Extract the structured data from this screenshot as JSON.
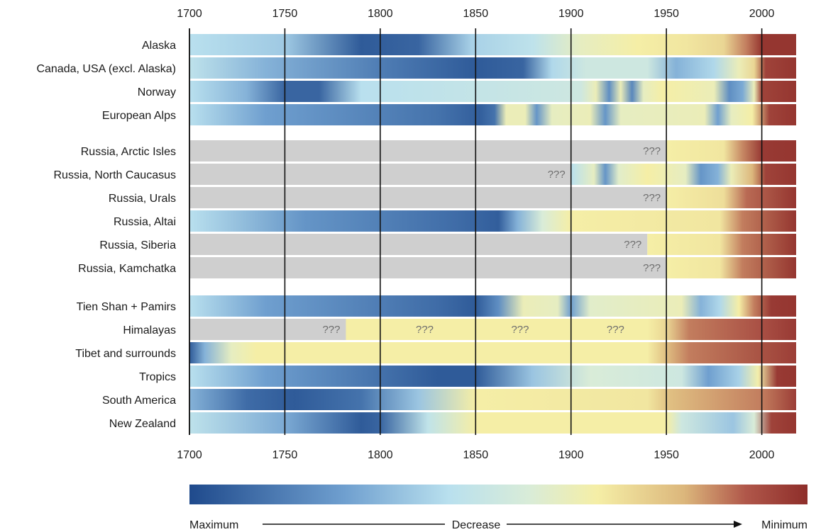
{
  "chart_data": {
    "type": "heatmap",
    "x_range": [
      1700,
      2018
    ],
    "x_ticks": [
      "1700",
      "1750",
      "1800",
      "1850",
      "1900",
      "1950",
      "2000"
    ],
    "value_scale": "0 = maximum glacier extent, 1 = minimum glacier extent",
    "no_data_color": "#cfcfcf",
    "colormap": [
      {
        "v": 0.0,
        "color": "#1f4a8c"
      },
      {
        "v": 0.25,
        "color": "#6f9fcf"
      },
      {
        "v": 0.42,
        "color": "#b9e0ee"
      },
      {
        "v": 0.55,
        "color": "#d9ecd8"
      },
      {
        "v": 0.66,
        "color": "#f5eea6"
      },
      {
        "v": 0.8,
        "color": "#dcb77c"
      },
      {
        "v": 0.9,
        "color": "#b0574a"
      },
      {
        "v": 1.0,
        "color": "#8e2e2a"
      }
    ],
    "groups": [
      {
        "rows": [
          {
            "name": "Alaska",
            "stops": [
              [
                1700,
                0.42
              ],
              [
                1750,
                0.36
              ],
              [
                1790,
                0.05
              ],
              [
                1820,
                0.08
              ],
              [
                1848,
                0.38
              ],
              [
                1880,
                0.44
              ],
              [
                1905,
                0.6
              ],
              [
                1935,
                0.66
              ],
              [
                1960,
                0.68
              ],
              [
                1980,
                0.72
              ],
              [
                1992,
                0.86
              ],
              [
                2000,
                0.98
              ],
              [
                2018,
                0.98
              ]
            ],
            "unknown": []
          },
          {
            "name": "Canada, USA (excl. Alaska)",
            "stops": [
              [
                1700,
                0.44
              ],
              [
                1740,
                0.3
              ],
              [
                1800,
                0.15
              ],
              [
                1850,
                0.05
              ],
              [
                1875,
                0.08
              ],
              [
                1890,
                0.4
              ],
              [
                1908,
                0.5
              ],
              [
                1940,
                0.5
              ],
              [
                1955,
                0.3
              ],
              [
                1975,
                0.4
              ],
              [
                1988,
                0.62
              ],
              [
                1996,
                0.72
              ],
              [
                2002,
                0.95
              ],
              [
                2018,
                0.98
              ]
            ],
            "unknown": []
          },
          {
            "name": "Norway",
            "stops": [
              [
                1700,
                0.42
              ],
              [
                1730,
                0.3
              ],
              [
                1750,
                0.08
              ],
              [
                1768,
                0.08
              ],
              [
                1790,
                0.42
              ],
              [
                1905,
                0.5
              ],
              [
                1913,
                0.62
              ],
              [
                1920,
                0.2
              ],
              [
                1926,
                0.62
              ],
              [
                1932,
                0.18
              ],
              [
                1938,
                0.6
              ],
              [
                1948,
                0.66
              ],
              [
                1975,
                0.62
              ],
              [
                1983,
                0.2
              ],
              [
                1990,
                0.28
              ],
              [
                1996,
                0.62
              ],
              [
                2000,
                0.95
              ],
              [
                2018,
                0.98
              ]
            ],
            "unknown": []
          },
          {
            "name": "European Alps",
            "stops": [
              [
                1700,
                0.42
              ],
              [
                1740,
                0.25
              ],
              [
                1830,
                0.12
              ],
              [
                1852,
                0.06
              ],
              [
                1860,
                0.12
              ],
              [
                1866,
                0.62
              ],
              [
                1876,
                0.62
              ],
              [
                1882,
                0.22
              ],
              [
                1890,
                0.6
              ],
              [
                1910,
                0.62
              ],
              [
                1918,
                0.22
              ],
              [
                1926,
                0.6
              ],
              [
                1970,
                0.62
              ],
              [
                1977,
                0.25
              ],
              [
                1984,
                0.6
              ],
              [
                1995,
                0.66
              ],
              [
                2004,
                0.95
              ],
              [
                2018,
                0.98
              ]
            ],
            "unknown": []
          }
        ]
      },
      {
        "rows": [
          {
            "name": "Russia, Arctic Isles",
            "stops": [
              [
                1950,
                0.66
              ],
              [
                1980,
                0.68
              ],
              [
                1990,
                0.85
              ],
              [
                2000,
                0.97
              ],
              [
                2018,
                0.98
              ]
            ],
            "unknown": [
              {
                "from": 1700,
                "to": 1950,
                "label": "???"
              }
            ]
          },
          {
            "name": "Russia, North Caucasus",
            "stops": [
              [
                1900,
                0.42
              ],
              [
                1912,
                0.6
              ],
              [
                1918,
                0.22
              ],
              [
                1925,
                0.58
              ],
              [
                1940,
                0.66
              ],
              [
                1960,
                0.6
              ],
              [
                1968,
                0.22
              ],
              [
                1977,
                0.3
              ],
              [
                1984,
                0.62
              ],
              [
                1995,
                0.8
              ],
              [
                2002,
                0.95
              ],
              [
                2018,
                0.98
              ]
            ],
            "unknown": [
              {
                "from": 1700,
                "to": 1900,
                "label": "???"
              }
            ]
          },
          {
            "name": "Russia, Urals",
            "stops": [
              [
                1950,
                0.66
              ],
              [
                1980,
                0.7
              ],
              [
                1992,
                0.88
              ],
              [
                2018,
                0.98
              ]
            ],
            "unknown": [
              {
                "from": 1700,
                "to": 1950,
                "label": "???"
              }
            ]
          },
          {
            "name": "Russia, Altai",
            "stops": [
              [
                1700,
                0.42
              ],
              [
                1760,
                0.22
              ],
              [
                1840,
                0.1
              ],
              [
                1862,
                0.06
              ],
              [
                1872,
                0.3
              ],
              [
                1885,
                0.55
              ],
              [
                1900,
                0.66
              ],
              [
                1978,
                0.68
              ],
              [
                1990,
                0.86
              ],
              [
                2018,
                0.98
              ]
            ],
            "unknown": []
          },
          {
            "name": "Russia, Siberia",
            "stops": [
              [
                1940,
                0.66
              ],
              [
                1978,
                0.68
              ],
              [
                1990,
                0.86
              ],
              [
                2018,
                0.98
              ]
            ],
            "unknown": [
              {
                "from": 1700,
                "to": 1940,
                "label": "???"
              }
            ]
          },
          {
            "name": "Russia, Kamchatka",
            "stops": [
              [
                1950,
                0.66
              ],
              [
                1978,
                0.68
              ],
              [
                1990,
                0.86
              ],
              [
                2018,
                0.98
              ]
            ],
            "unknown": [
              {
                "from": 1700,
                "to": 1950,
                "label": "???"
              }
            ]
          }
        ]
      },
      {
        "rows": [
          {
            "name": "Tien Shan + Pamirs",
            "stops": [
              [
                1700,
                0.42
              ],
              [
                1740,
                0.25
              ],
              [
                1830,
                0.1
              ],
              [
                1850,
                0.05
              ],
              [
                1862,
                0.2
              ],
              [
                1875,
                0.62
              ],
              [
                1893,
                0.6
              ],
              [
                1900,
                0.25
              ],
              [
                1910,
                0.58
              ],
              [
                1958,
                0.62
              ],
              [
                1968,
                0.3
              ],
              [
                1978,
                0.4
              ],
              [
                1988,
                0.66
              ],
              [
                1996,
                0.86
              ],
              [
                2005,
                0.97
              ],
              [
                2018,
                0.98
              ]
            ],
            "unknown": []
          },
          {
            "name": "Himalayas",
            "stops": [
              [
                1782,
                0.66
              ],
              [
                1940,
                0.66
              ],
              [
                1950,
                0.72
              ],
              [
                1962,
                0.86
              ],
              [
                2000,
                0.92
              ],
              [
                2018,
                0.97
              ]
            ],
            "unknown": [
              {
                "from": 1700,
                "to": 1782,
                "label": "???"
              }
            ]
          },
          {
            "name": "Tibet and surrounds",
            "stops": [
              [
                1700,
                0.05
              ],
              [
                1708,
                0.3
              ],
              [
                1722,
                0.6
              ],
              [
                1735,
                0.66
              ],
              [
                1940,
                0.66
              ],
              [
                1950,
                0.78
              ],
              [
                1962,
                0.86
              ],
              [
                2018,
                0.96
              ]
            ],
            "unknown": []
          },
          {
            "name": "Tropics",
            "stops": [
              [
                1700,
                0.42
              ],
              [
                1740,
                0.25
              ],
              [
                1830,
                0.05
              ],
              [
                1850,
                0.05
              ],
              [
                1880,
                0.35
              ],
              [
                1910,
                0.55
              ],
              [
                1958,
                0.5
              ],
              [
                1972,
                0.25
              ],
              [
                1988,
                0.38
              ],
              [
                1998,
                0.65
              ],
              [
                2008,
                0.97
              ],
              [
                2018,
                0.98
              ]
            ],
            "unknown": []
          },
          {
            "name": "South America",
            "stops": [
              [
                1700,
                0.3
              ],
              [
                1730,
                0.1
              ],
              [
                1755,
                0.05
              ],
              [
                1790,
                0.12
              ],
              [
                1820,
                0.35
              ],
              [
                1850,
                0.66
              ],
              [
                1940,
                0.68
              ],
              [
                1952,
                0.78
              ],
              [
                2000,
                0.86
              ],
              [
                2018,
                0.96
              ]
            ],
            "unknown": []
          },
          {
            "name": "New Zealand",
            "stops": [
              [
                1700,
                0.44
              ],
              [
                1750,
                0.28
              ],
              [
                1790,
                0.05
              ],
              [
                1800,
                0.08
              ],
              [
                1825,
                0.45
              ],
              [
                1850,
                0.66
              ],
              [
                1950,
                0.66
              ],
              [
                1958,
                0.5
              ],
              [
                1985,
                0.35
              ],
              [
                1996,
                0.55
              ],
              [
                2005,
                0.95
              ],
              [
                2018,
                0.98
              ]
            ],
            "unknown": []
          }
        ]
      }
    ],
    "legend": {
      "min_label": "Maximum",
      "mid_label": "Decrease",
      "max_label": "Minimum"
    }
  }
}
